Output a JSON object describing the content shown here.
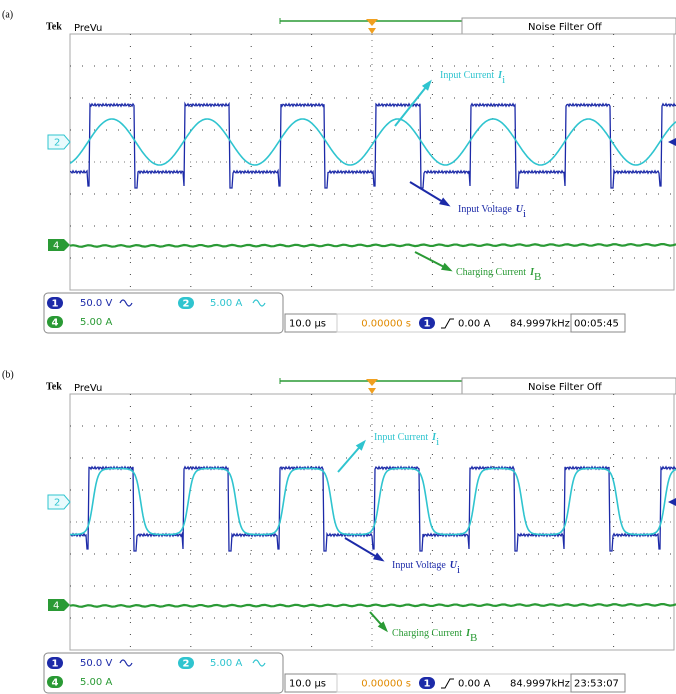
{
  "panels": [
    {
      "label": "(a)",
      "brand": "Tek",
      "mode": "PreVu",
      "filter": "Noise Filter Off",
      "markers": {
        "ch2": "2",
        "ch4": "4"
      },
      "annotations": [
        {
          "text": "Input Current",
          "symbol": "I",
          "subscript": "i"
        },
        {
          "text": "Input Voltage",
          "symbol": "U",
          "subscript": "i"
        },
        {
          "text": "Charging Current",
          "symbol": "I",
          "subscript": "B"
        }
      ],
      "status": {
        "ch1": "1",
        "ch1_scale": "50.0 V",
        "ch2": "2",
        "ch2_scale": "5.00 A",
        "ch4": "4",
        "ch4_scale": "5.00 A",
        "timebase": "10.0 µs",
        "position": "0.00000 s",
        "trigger_channel": "1",
        "trigger_level": "0.00 A",
        "frequency": "84.9997kHz",
        "clock": "00:05:45"
      }
    },
    {
      "label": "(b)",
      "brand": "Tek",
      "mode": "PreVu",
      "filter": "Noise Filter Off",
      "markers": {
        "ch2": "2",
        "ch4": "4"
      },
      "annotations": [
        {
          "text": "Input Current",
          "symbol": "I",
          "subscript": "i"
        },
        {
          "text": "Input Voltage",
          "symbol": "U",
          "subscript": "i"
        },
        {
          "text": "Charging Current",
          "symbol": "I",
          "subscript": "B"
        }
      ],
      "status": {
        "ch1": "1",
        "ch1_scale": "50.0 V",
        "ch2": "2",
        "ch2_scale": "5.00 A",
        "ch4": "4",
        "ch4_scale": "5.00 A",
        "timebase": "10.0 µs",
        "position": "0.00000 s",
        "trigger_channel": "1",
        "trigger_level": "0.00 A",
        "frequency": "84.9997kHz",
        "clock": "23:53:07"
      }
    }
  ]
}
